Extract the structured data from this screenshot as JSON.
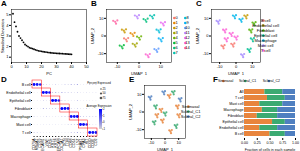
{
  "chart_data": [
    {
      "type": "scatter",
      "title": "A",
      "x_label": "PC",
      "y_label": "Standard Deviation",
      "color": "#000000",
      "x": [
        1,
        2,
        3,
        4,
        5,
        6,
        7,
        8,
        9,
        10,
        11,
        12,
        13,
        14,
        15,
        16,
        17,
        18,
        19,
        20,
        21,
        22,
        23,
        24,
        25,
        26,
        27,
        28,
        29,
        30,
        31,
        32,
        33,
        34,
        35,
        36,
        37,
        38,
        39,
        40
      ],
      "values": [
        5.1,
        4.3,
        3.9,
        3.4,
        3.0,
        2.8,
        2.6,
        2.4,
        2.2,
        2.1,
        2.0,
        1.9,
        1.85,
        1.8,
        1.75,
        1.7,
        1.65,
        1.6,
        1.58,
        1.55,
        1.52,
        1.5,
        1.48,
        1.46,
        1.44,
        1.42,
        1.4,
        1.39,
        1.38,
        1.37,
        1.36,
        1.35,
        1.34,
        1.33,
        1.32,
        1.31,
        1.3,
        1.29,
        1.28,
        1.27
      ],
      "xlim": [
        0,
        50
      ],
      "xticks": [
        0,
        10,
        20,
        30,
        40,
        50
      ],
      "ylim": [
        0.5,
        5.5
      ],
      "yticks": [
        1,
        2,
        3,
        4,
        5
      ]
    },
    {
      "type": "scatter",
      "title": "B",
      "x_label": "UMAP_1",
      "y_label": "UMAP_2",
      "legend": "right",
      "xlim": [
        -15,
        15
      ],
      "xticks": [
        -10,
        0,
        10
      ],
      "ylim": [
        -15,
        15
      ],
      "yticks": [
        -10,
        0,
        10
      ],
      "series": [
        {
          "name": "0",
          "color": "#F8766D",
          "x": [
            -6,
            -5,
            -6.9,
            -5.6
          ],
          "y": [
            -2,
            -1.2,
            -1.4,
            -3
          ]
        },
        {
          "name": "1",
          "color": "#E58700",
          "x": [
            -3,
            -2,
            -3.9,
            -2.6
          ],
          "y": [
            1,
            1.8,
            1.6,
            0
          ]
        },
        {
          "name": "2",
          "color": "#C99800",
          "x": [
            -7,
            -6,
            -7.9,
            -6.6
          ],
          "y": [
            3,
            3.8,
            3.6,
            2
          ]
        },
        {
          "name": "3",
          "color": "#A3A500",
          "x": [
            -2,
            -1,
            -2.9,
            -1.6
          ],
          "y": [
            -5,
            -4.2,
            -4.4,
            -6
          ]
        },
        {
          "name": "4",
          "color": "#6BB100",
          "x": [
            0,
            1,
            -0.9,
            0.4
          ],
          "y": [
            -1,
            -0.2,
            -0.4,
            -2
          ]
        },
        {
          "name": "5",
          "color": "#00BA38",
          "x": [
            -8,
            -7,
            -8.9,
            -7.6
          ],
          "y": [
            -6,
            -5.2,
            -5.4,
            -7
          ]
        },
        {
          "name": "6",
          "color": "#00BF7D",
          "x": [
            3,
            4,
            2.1,
            3.4
          ],
          "y": [
            9,
            9.8,
            9.6,
            8
          ]
        },
        {
          "name": "7",
          "color": "#00C0AF",
          "x": [
            6,
            7,
            5.1,
            6.4
          ],
          "y": [
            11,
            11.8,
            11.6,
            10
          ]
        },
        {
          "name": "8",
          "color": "#00BCD8",
          "x": [
            9,
            10,
            8.1,
            9.4
          ],
          "y": [
            3,
            3.8,
            3.6,
            2
          ]
        },
        {
          "name": "9",
          "color": "#00B0F6",
          "x": [
            10,
            11,
            9.1,
            10.4
          ],
          "y": [
            -2,
            -1.2,
            -1.4,
            -3
          ]
        },
        {
          "name": "10",
          "color": "#619CFF",
          "x": [
            8,
            9,
            7.1,
            8.4
          ],
          "y": [
            -8,
            -7.2,
            -7.4,
            -9
          ]
        },
        {
          "name": "11",
          "color": "#B983FF",
          "x": [
            -1,
            0,
            -1.9,
            -0.6
          ],
          "y": [
            11,
            11.8,
            11.6,
            10
          ]
        },
        {
          "name": "12",
          "color": "#E76BF3",
          "x": [
            11,
            12,
            10.1,
            11.4
          ],
          "y": [
            7,
            7.8,
            7.6,
            6
          ]
        },
        {
          "name": "13",
          "color": "#FD61D1",
          "x": [
            4,
            5,
            3.1,
            4.4
          ],
          "y": [
            -11,
            -10.2,
            -10.4,
            -12
          ]
        },
        {
          "name": "14",
          "color": "#FF67A4",
          "x": [
            -11,
            -10,
            -11.9,
            -10.6
          ],
          "y": [
            8,
            8.8,
            8.6,
            7
          ]
        }
      ]
    },
    {
      "type": "scatter",
      "title": "C",
      "x_label": "UMAP_1",
      "y_label": "UMAP_2",
      "legend": "right",
      "xlim": [
        -15,
        15
      ],
      "xticks": [
        -10,
        0,
        10
      ],
      "ylim": [
        -15,
        15
      ],
      "yticks": [
        -10,
        0,
        10
      ],
      "series": [
        {
          "name": "B cell",
          "color": "#F8766D",
          "x": [
            -2,
            -1,
            -2.9,
            -1.6,
            -8,
            -7,
            -8.9,
            -7.6
          ],
          "y": [
            -5,
            -4.2,
            -4.4,
            -6,
            -6,
            -5.2,
            -5.4,
            -7
          ]
        },
        {
          "name": "Endothelial cell",
          "color": "#C49A00",
          "x": [
            6,
            7,
            5.1,
            6.4
          ],
          "y": [
            11,
            11.8,
            11.6,
            10
          ]
        },
        {
          "name": "Fibroblast",
          "color": "#53B400",
          "x": [
            9,
            10,
            8.1,
            9.4,
            11,
            12,
            10.1,
            11.4
          ],
          "y": [
            3,
            3.8,
            3.6,
            2,
            7,
            7.8,
            7.6,
            6
          ]
        },
        {
          "name": "Epithelial cell",
          "color": "#00C094",
          "x": [
            10,
            11,
            9.1,
            10.4,
            8,
            9,
            7.1,
            8.4
          ],
          "y": [
            -2,
            -1.2,
            -1.4,
            -3,
            -8,
            -7.2,
            -7.4,
            -9
          ]
        },
        {
          "name": "Macrophage",
          "color": "#00B6EB",
          "x": [
            3,
            4,
            2.1,
            3.4,
            -1,
            0,
            -1.9,
            -0.6
          ],
          "y": [
            9,
            9.8,
            9.6,
            8,
            11,
            11.8,
            11.6,
            10
          ]
        },
        {
          "name": "Mast cell",
          "color": "#A58AFF",
          "x": [
            4,
            5,
            3.1,
            4.4,
            -11,
            -10,
            -11.9,
            -10.6
          ],
          "y": [
            -11,
            -10.2,
            -10.4,
            -12,
            8,
            8.8,
            8.6,
            7
          ]
        },
        {
          "name": "T cell",
          "color": "#FB61D7",
          "x": [
            -6,
            -5,
            -6.9,
            -5.6,
            -3,
            -2,
            -3.9,
            -2.6,
            -7,
            -6,
            -7.9,
            -6.6,
            0,
            1,
            -0.9,
            0.4
          ],
          "y": [
            -2,
            -1.2,
            -1.4,
            -3,
            1,
            1.8,
            1.6,
            0,
            3,
            3.8,
            3.6,
            2,
            -1,
            -0.2,
            -0.4,
            -2
          ]
        }
      ]
    },
    {
      "type": "dotplot",
      "title": "D",
      "categories": [
        "CD79A",
        "MS4A1",
        "CD19",
        "PECAM1",
        "VWF",
        "CDH5",
        "KRT5",
        "KRT8",
        "EPCAM",
        "COL1A1",
        "DCN",
        "LUM",
        "CD68",
        "CD14",
        "LYZ",
        "TPSAB1",
        "CPA3",
        "KIT",
        "CD3D",
        "CD3E",
        "CD2"
      ],
      "y_categories": [
        "B cell",
        "Endothelial cell",
        "Epithelial cell",
        "Fibroblast",
        "Macrophage",
        "Mast cell",
        "T cell"
      ],
      "percent_expressed": [
        [
          85,
          78,
          70,
          8,
          6,
          5,
          4,
          6,
          3,
          5,
          7,
          6,
          12,
          10,
          15,
          3,
          4,
          2,
          10,
          8,
          9
        ],
        [
          3,
          2,
          4,
          88,
          82,
          75,
          10,
          12,
          6,
          15,
          10,
          8,
          6,
          5,
          8,
          4,
          3,
          5,
          3,
          4,
          5
        ],
        [
          2,
          3,
          2,
          6,
          5,
          4,
          90,
          85,
          72,
          8,
          6,
          5,
          4,
          3,
          10,
          2,
          3,
          4,
          2,
          3,
          2
        ],
        [
          3,
          2,
          2,
          12,
          10,
          6,
          8,
          10,
          4,
          92,
          88,
          80,
          6,
          4,
          7,
          5,
          4,
          8,
          2,
          3,
          3
        ],
        [
          6,
          4,
          3,
          5,
          6,
          4,
          4,
          5,
          3,
          8,
          10,
          6,
          85,
          80,
          90,
          10,
          8,
          6,
          8,
          6,
          7
        ],
        [
          2,
          3,
          2,
          4,
          3,
          5,
          3,
          4,
          2,
          5,
          4,
          6,
          10,
          8,
          12,
          88,
          84,
          70,
          6,
          5,
          4
        ],
        [
          8,
          6,
          4,
          3,
          2,
          3,
          2,
          3,
          2,
          3,
          4,
          3,
          10,
          8,
          12,
          6,
          5,
          4,
          86,
          82,
          78
        ]
      ],
      "average_expression": [
        [
          1.9,
          1.7,
          1.5,
          -0.4,
          -0.5,
          -0.4,
          -0.5,
          -0.3,
          -0.5,
          -0.4,
          -0.3,
          -0.4,
          -0.2,
          -0.3,
          -0.1,
          -0.5,
          -0.4,
          -0.5,
          -0.3,
          -0.3,
          -0.2
        ],
        [
          -0.5,
          -0.5,
          -0.4,
          1.9,
          1.8,
          1.6,
          -0.3,
          -0.2,
          -0.4,
          -0.1,
          -0.3,
          -0.3,
          -0.4,
          -0.4,
          -0.3,
          -0.4,
          -0.5,
          -0.3,
          -0.5,
          -0.4,
          -0.4
        ],
        [
          -0.5,
          -0.5,
          -0.5,
          -0.4,
          -0.4,
          -0.5,
          2.0,
          1.8,
          1.5,
          -0.3,
          -0.4,
          -0.4,
          -0.5,
          -0.5,
          -0.2,
          -0.5,
          -0.4,
          -0.4,
          -0.5,
          -0.5,
          -0.5
        ],
        [
          -0.5,
          -0.5,
          -0.5,
          -0.2,
          -0.3,
          -0.4,
          -0.3,
          -0.2,
          -0.5,
          2.0,
          1.9,
          1.7,
          -0.4,
          -0.5,
          -0.3,
          -0.4,
          -0.5,
          -0.3,
          -0.5,
          -0.5,
          -0.5
        ],
        [
          -0.3,
          -0.4,
          -0.5,
          -0.4,
          -0.4,
          -0.5,
          -0.5,
          -0.4,
          -0.5,
          -0.3,
          -0.2,
          -0.4,
          1.8,
          1.7,
          1.9,
          -0.2,
          -0.3,
          -0.4,
          -0.3,
          -0.4,
          -0.3
        ],
        [
          -0.5,
          -0.5,
          -0.5,
          -0.4,
          -0.5,
          -0.4,
          -0.5,
          -0.4,
          -0.5,
          -0.4,
          -0.4,
          -0.3,
          -0.2,
          -0.3,
          -0.1,
          1.9,
          1.8,
          1.4,
          -0.3,
          -0.4,
          -0.4
        ],
        [
          -0.2,
          -0.3,
          -0.4,
          -0.5,
          -0.5,
          -0.5,
          -0.5,
          -0.5,
          -0.5,
          -0.5,
          -0.4,
          -0.5,
          -0.2,
          -0.3,
          -0.1,
          -0.3,
          -0.4,
          -0.4,
          1.9,
          1.8,
          1.7
        ]
      ],
      "size_title": "Percent Expressed",
      "size_ticks": [
        25,
        50,
        75
      ],
      "color_title": "Average Expression",
      "color_range": [
        -1,
        2
      ],
      "color_ticks": [
        -1,
        0,
        1,
        2
      ],
      "colors": [
        "#d3d3d3",
        "#0000ff"
      ]
    },
    {
      "type": "scatter",
      "title": "E",
      "x_label": "UMAP_1",
      "y_label": "UMAP_2",
      "legend": "right",
      "xlim": [
        -15,
        15
      ],
      "xticks": [
        -10,
        0,
        10
      ],
      "ylim": [
        -15,
        15
      ],
      "yticks": [
        -10,
        0,
        10
      ],
      "series": [
        {
          "name": "Sinonasal",
          "color": "#E8853D",
          "x": [
            -6,
            -5,
            -6.9,
            -5.6,
            -3,
            -2,
            -3.9,
            -2.6,
            -2,
            -1,
            -2.9,
            -1.6,
            3,
            4,
            2.1,
            3.4,
            9,
            10,
            8.1,
            9.4,
            10,
            11,
            9.1,
            10.4,
            4,
            5,
            3.1,
            4.4
          ],
          "y": [
            -2,
            -1.2,
            -1.4,
            -3,
            1,
            1.8,
            1.6,
            0,
            -5,
            -4.2,
            -4.4,
            -6,
            9,
            9.8,
            9.6,
            8,
            3,
            3.8,
            3.6,
            2,
            -2,
            -1.2,
            -1.4,
            -3,
            -11,
            -10.2,
            -10.4,
            -12
          ]
        },
        {
          "name": "Scleral_C1",
          "color": "#3BAA72",
          "x": [
            -7,
            -6,
            -7.9,
            -6.6,
            0,
            1,
            -0.9,
            0.4,
            -8,
            -7,
            -8.9,
            -7.6,
            6,
            7,
            5.1,
            6.4,
            8,
            9,
            7.1,
            8.4
          ],
          "y": [
            3,
            3.8,
            3.6,
            2,
            -1,
            -0.2,
            -0.4,
            -2,
            -6,
            -5.2,
            -5.4,
            -7,
            11,
            11.8,
            11.6,
            10,
            -8,
            -7.2,
            -7.4,
            -9
          ]
        },
        {
          "name": "Scleral_C2",
          "color": "#4F7FC0",
          "x": [
            -1,
            0,
            -1.9,
            -0.6,
            11,
            12,
            10.1,
            11.4,
            -11,
            -10,
            -11.9,
            -10.6
          ],
          "y": [
            11,
            11.8,
            11.6,
            10,
            7,
            7.8,
            7.6,
            6,
            8,
            8.8,
            8.6,
            7
          ]
        }
      ]
    },
    {
      "type": "bar",
      "title": "F",
      "orientation": "horizontal",
      "stacked": true,
      "legend": "top",
      "x_label": "Fraction of cells in each sample",
      "categories": [
        "All",
        "T cell",
        "Mast cell",
        "Macrophage",
        "Fibroblast",
        "Epithelial cell",
        "Endothelial cell",
        "B cell"
      ],
      "xlim": [
        0,
        1
      ],
      "xticks": [
        {
          "value": 0,
          "label": "0.00"
        },
        {
          "value": 0.25,
          "label": "0.25"
        },
        {
          "value": 0.5,
          "label": "0.50"
        },
        {
          "value": 0.75,
          "label": "0.75"
        },
        {
          "value": 1,
          "label": "1.00"
        }
      ],
      "series": [
        {
          "name": "Sinonasal",
          "color": "#E8853D",
          "values": [
            0.4,
            0.45,
            0.3,
            0.35,
            0.25,
            0.55,
            0.3,
            0.5
          ]
        },
        {
          "name": "Scleral_C1",
          "color": "#3BAA72",
          "values": [
            0.35,
            0.35,
            0.45,
            0.3,
            0.4,
            0.25,
            0.35,
            0.3
          ]
        },
        {
          "name": "Scleral_C2",
          "color": "#4F7FC0",
          "values": [
            0.25,
            0.2,
            0.25,
            0.35,
            0.35,
            0.2,
            0.35,
            0.2
          ]
        }
      ]
    }
  ]
}
